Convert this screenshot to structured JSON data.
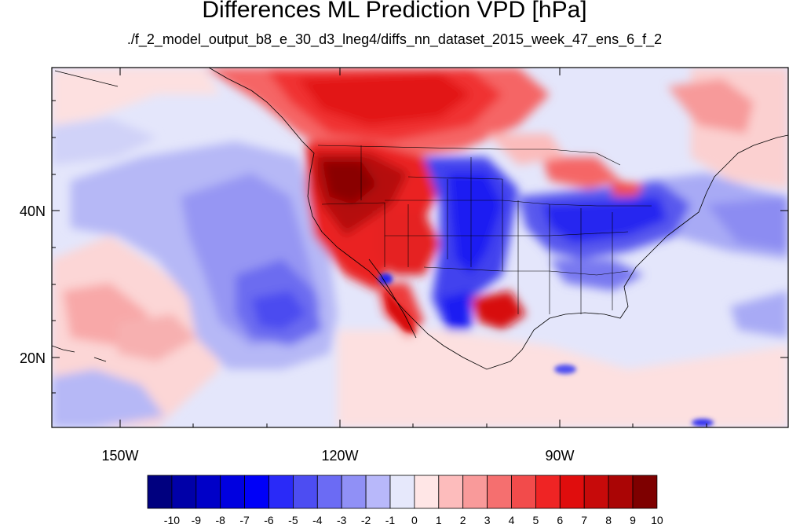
{
  "title": "Differences ML Prediction VPD [hPa]",
  "subtitle": "./f_2_model_output_b8_e_30_d3_lneg4/diffs_nn_dataset_2015_week_47_ens_6_f_2",
  "map": {
    "lon_range": [
      -160,
      -62
    ],
    "lat_range": [
      10,
      59
    ],
    "lon_ticks": [
      "150W",
      "120W",
      "90W"
    ],
    "lat_ticks": [
      "40N",
      "20N"
    ],
    "features": [
      "coastlines",
      "us-state-boundaries",
      "country-boundaries"
    ]
  },
  "colorbar": {
    "labels": [
      "-10",
      "-9",
      "-8",
      "-7",
      "-6",
      "-5",
      "-4",
      "-3",
      "-2",
      "-1",
      "0",
      "1",
      "2",
      "3",
      "4",
      "5",
      "6",
      "7",
      "8",
      "9",
      "10"
    ],
    "colors": [
      "#00007f",
      "#0000a8",
      "#0000c8",
      "#0000e0",
      "#0000f8",
      "#2a2af8",
      "#4d4df2",
      "#6b6bf4",
      "#9090f6",
      "#b8b8fa",
      "#e6e8fb",
      "#ffe6e6",
      "#fdbcbc",
      "#f99a9a",
      "#f56f6f",
      "#f24b4b",
      "#ef2424",
      "#e00d0d",
      "#c70a0a",
      "#aa0505",
      "#7e0000"
    ]
  }
}
